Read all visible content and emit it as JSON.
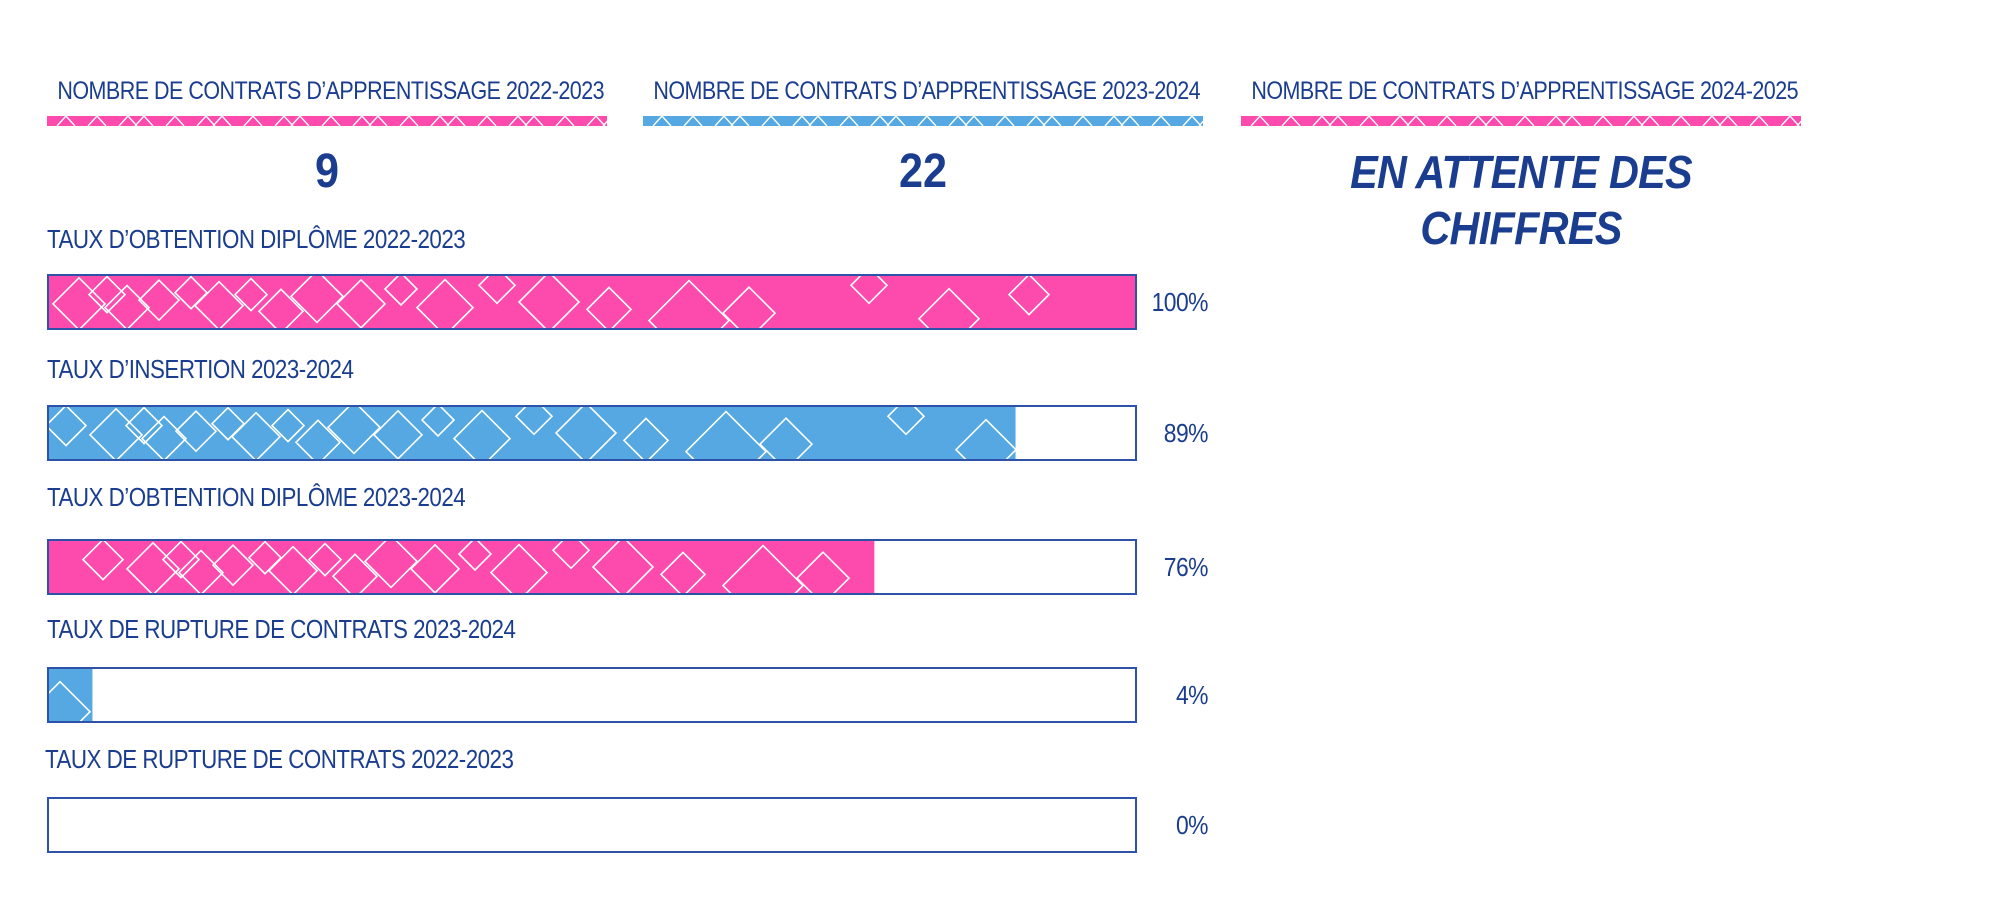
{
  "contracts": [
    {
      "label": "NOMBRE DE CONTRATS D’APPRENTISSAGE 2022-2023",
      "value": "9",
      "color": "#fc4aad"
    },
    {
      "label": "NOMBRE DE CONTRATS D’APPRENTISSAGE 2023-2024",
      "value": "22",
      "color": "#55a8e2"
    },
    {
      "label": "NOMBRE DE CONTRATS D’APPRENTISSAGE 2024-2025",
      "value": "EN ATTENTE DES CHIFFRES",
      "color": "#fc4aad"
    }
  ],
  "colors": {
    "pink": "#fc4aad",
    "blue": "#55a8e2",
    "navy": "#1a3d8f",
    "bar_border": "#2d52a8"
  },
  "chart_data": {
    "type": "bar",
    "orientation": "horizontal",
    "xlim": [
      0,
      100
    ],
    "unit": "%",
    "categories": [
      "TAUX D’OBTENTION DIPLÔME 2022-2023",
      "TAUX D’INSERTION 2023-2024",
      "TAUX D’OBTENTION DIPLÔME 2023-2024",
      "TAUX DE RUPTURE DE CONTRATS 2023-2024",
      "TAUX DE RUPTURE DE CONTRATS 2022-2023"
    ],
    "values": [
      100,
      89,
      76,
      4,
      0
    ],
    "value_labels": [
      "100%",
      "89%",
      "76%",
      "4%",
      "0%"
    ],
    "bar_colors": [
      "#fc4aad",
      "#55a8e2",
      "#fc4aad",
      "#55a8e2",
      "#fc4aad"
    ]
  }
}
